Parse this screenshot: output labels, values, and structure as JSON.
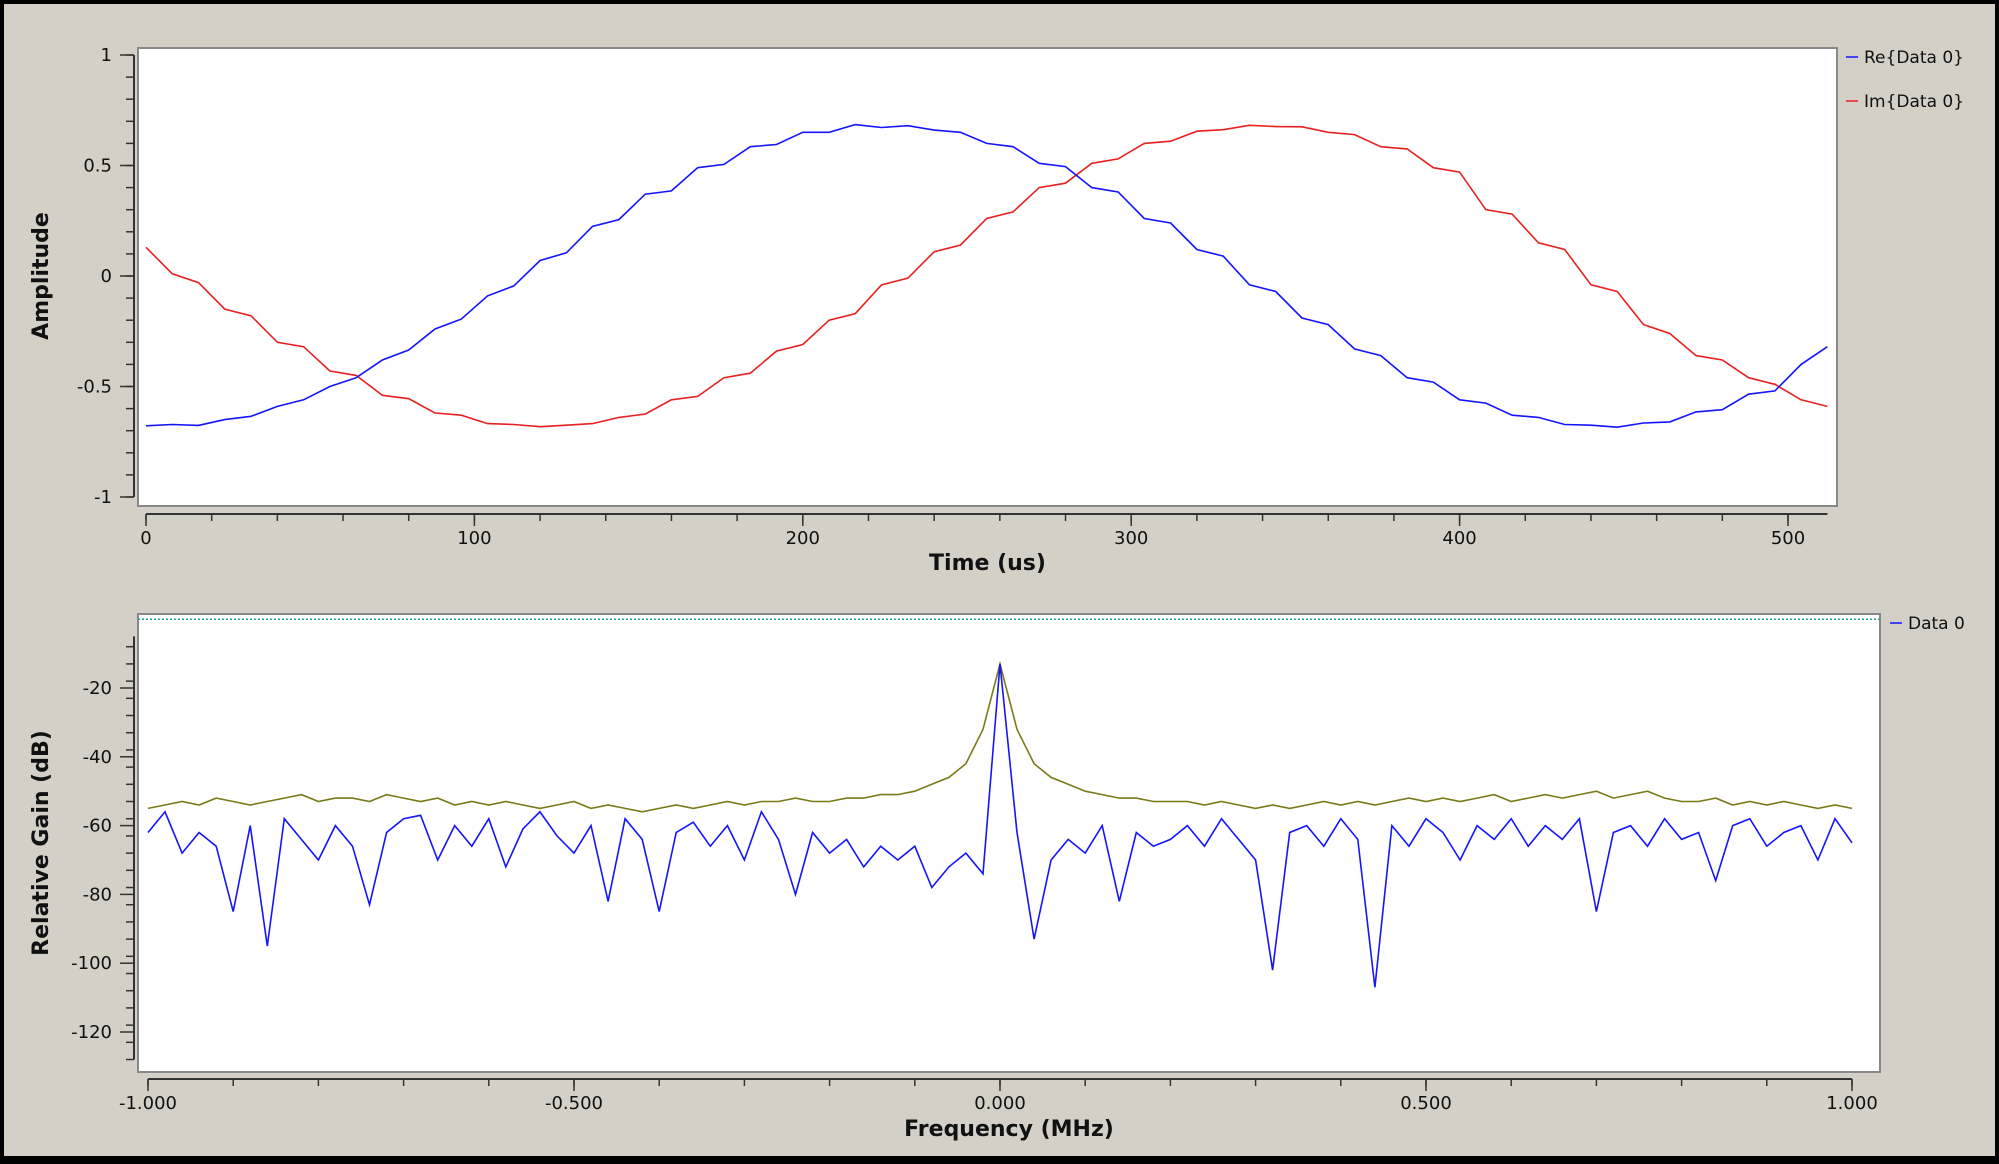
{
  "chart_data": [
    {
      "type": "line",
      "xlabel": "Time (us)",
      "ylabel": "Amplitude",
      "xlim": [
        0,
        512
      ],
      "ylim": [
        -1,
        1
      ],
      "xticks": [
        "0",
        "100",
        "200",
        "300",
        "400",
        "500"
      ],
      "xtick_values": [
        0,
        100,
        200,
        300,
        400,
        500
      ],
      "yticks": [
        "1",
        "0.5",
        "0",
        "-0.5",
        "-1"
      ],
      "ytick_values": [
        1,
        0.5,
        0,
        -0.5,
        -1
      ],
      "legend_position": "right",
      "x_start": 0,
      "x_step": 8,
      "series": [
        {
          "name": "Re{Data 0}",
          "color": "#1414ff",
          "values": [
            -0.678,
            -0.672,
            -0.676,
            -0.65,
            -0.635,
            -0.59,
            -0.56,
            -0.5,
            -0.46,
            -0.38,
            -0.335,
            -0.24,
            -0.195,
            -0.09,
            -0.045,
            0.07,
            0.105,
            0.225,
            0.255,
            0.37,
            0.385,
            0.49,
            0.505,
            0.585,
            0.595,
            0.65,
            0.65,
            0.685,
            0.672,
            0.68,
            0.66,
            0.65,
            0.6,
            0.585,
            0.51,
            0.495,
            0.4,
            0.38,
            0.26,
            0.24,
            0.12,
            0.09,
            -0.04,
            -0.07,
            -0.19,
            -0.22,
            -0.33,
            -0.36,
            -0.46,
            -0.48,
            -0.56,
            -0.575,
            -0.63,
            -0.64,
            -0.672,
            -0.675,
            -0.684,
            -0.665,
            -0.66,
            -0.615,
            -0.605,
            -0.535,
            -0.52,
            -0.4,
            -0.32
          ]
        },
        {
          "name": "Im{Data 0}",
          "color": "#e82020",
          "values": [
            0.13,
            0.01,
            -0.03,
            -0.15,
            -0.18,
            -0.3,
            -0.32,
            -0.43,
            -0.45,
            -0.54,
            -0.555,
            -0.62,
            -0.63,
            -0.668,
            -0.672,
            -0.682,
            -0.675,
            -0.668,
            -0.64,
            -0.625,
            -0.56,
            -0.545,
            -0.46,
            -0.44,
            -0.34,
            -0.31,
            -0.2,
            -0.17,
            -0.04,
            -0.01,
            0.11,
            0.14,
            0.26,
            0.29,
            0.4,
            0.42,
            0.51,
            0.53,
            0.6,
            0.61,
            0.655,
            0.662,
            0.682,
            0.676,
            0.675,
            0.65,
            0.64,
            0.585,
            0.575,
            0.49,
            0.47,
            0.3,
            0.28,
            0.15,
            0.12,
            -0.04,
            -0.07,
            -0.22,
            -0.26,
            -0.36,
            -0.38,
            -0.46,
            -0.49,
            -0.56,
            -0.59
          ]
        }
      ]
    },
    {
      "type": "line",
      "xlabel": "Frequency (MHz)",
      "ylabel": "Relative Gain (dB)",
      "xlim": [
        -1,
        1
      ],
      "ylim": [
        -131,
        1.5
      ],
      "xticks": [
        "-1.000",
        "-0.500",
        "0.000",
        "0.500",
        "1.000"
      ],
      "xtick_values": [
        -1,
        -0.5,
        0,
        0.5,
        1
      ],
      "yticks": [
        "-20",
        "-40",
        "-60",
        "-80",
        "-100",
        "-120"
      ],
      "ytick_values": [
        -20,
        -40,
        -60,
        -80,
        -100,
        -120
      ],
      "legend_position": "right",
      "reference_line_db": 0,
      "reference_color": "#20a0a0",
      "x_start": -1,
      "x_step": 0.02,
      "series": [
        {
          "name": "Data 0",
          "color": "#1414ff",
          "values": [
            -62,
            -56,
            -68,
            -62,
            -66,
            -85,
            -60,
            -95,
            -58,
            -64,
            -70,
            -60,
            -66,
            -83,
            -62,
            -58,
            -57,
            -70,
            -60,
            -66,
            -58,
            -72,
            -61,
            -56,
            -63,
            -68,
            -60,
            -82,
            -58,
            -64,
            -85,
            -62,
            -59,
            -66,
            -60,
            -70,
            -56,
            -64,
            -80,
            -62,
            -68,
            -64,
            -72,
            -66,
            -70,
            -66,
            -78,
            -72,
            -68,
            -74,
            -13,
            -62,
            -93,
            -70,
            -64,
            -68,
            -60,
            -82,
            -62,
            -66,
            -64,
            -60,
            -66,
            -58,
            -64,
            -70,
            -102,
            -62,
            -60,
            -66,
            -58,
            -64,
            -107,
            -60,
            -66,
            -58,
            -62,
            -70,
            -60,
            -64,
            -58,
            -66,
            -60,
            -64,
            -58,
            -85,
            -62,
            -60,
            -66,
            -58,
            -64,
            -62,
            -76,
            -60,
            -58,
            -66,
            -62,
            -60,
            -70,
            -58,
            -65
          ]
        },
        {
          "name": "",
          "color": "#7a7a18",
          "values": [
            -55,
            -54,
            -53,
            -54,
            -52,
            -53,
            -54,
            -53,
            -52,
            -51,
            -53,
            -52,
            -52,
            -53,
            -51,
            -52,
            -53,
            -52,
            -54,
            -53,
            -54,
            -53,
            -54,
            -55,
            -54,
            -53,
            -55,
            -54,
            -55,
            -56,
            -55,
            -54,
            -55,
            -54,
            -53,
            -54,
            -53,
            -53,
            -52,
            -53,
            -53,
            -52,
            -52,
            -51,
            -51,
            -50,
            -48,
            -46,
            -42,
            -32,
            -13,
            -32,
            -42,
            -46,
            -48,
            -50,
            -51,
            -52,
            -52,
            -53,
            -53,
            -53,
            -54,
            -53,
            -54,
            -55,
            -54,
            -55,
            -54,
            -53,
            -54,
            -53,
            -54,
            -53,
            -52,
            -53,
            -52,
            -53,
            -52,
            -51,
            -53,
            -52,
            -51,
            -52,
            -51,
            -50,
            -52,
            -51,
            -50,
            -52,
            -53,
            -53,
            -52,
            -54,
            -53,
            -54,
            -53,
            -54,
            -55,
            -54,
            -55
          ]
        }
      ]
    }
  ]
}
